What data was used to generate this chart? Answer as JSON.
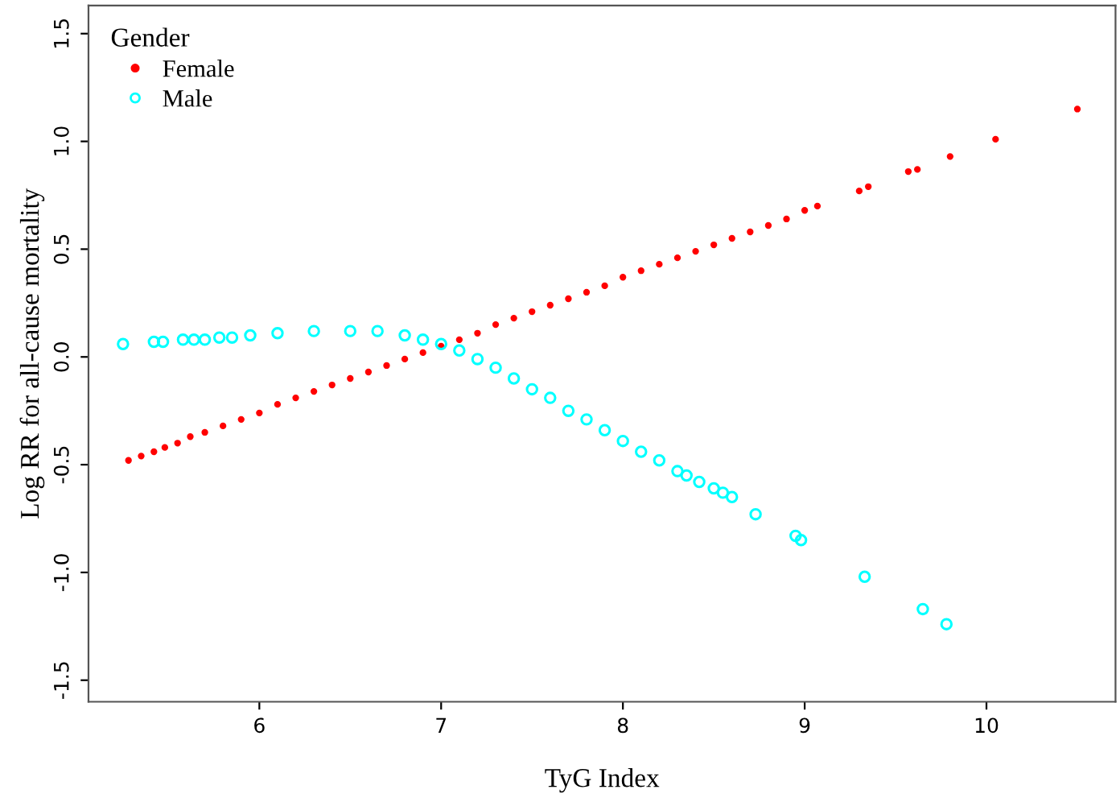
{
  "chart_data": {
    "type": "scatter",
    "xlabel": "TyG Index",
    "ylabel": "Log RR for all-cause mortality",
    "legend_title": "Gender",
    "xlim": [
      5.06,
      10.71
    ],
    "ylim": [
      -1.6,
      1.63
    ],
    "xticks": [
      6,
      7,
      8,
      9,
      10
    ],
    "yticks": [
      -1.5,
      {
        "value": -1,
        "label": "-1.0"
      },
      -0.5,
      {
        "value": 0,
        "label": "0.0"
      },
      0.5,
      {
        "value": 1,
        "label": "1.0"
      },
      1.5
    ],
    "grid": false,
    "legend": "top left",
    "marker": "circle",
    "series": [
      {
        "name": "Female",
        "color": "#ff0000",
        "x": [
          5.28,
          5.35,
          5.42,
          5.48,
          5.55,
          5.62,
          5.7,
          5.8,
          5.9,
          6.0,
          6.1,
          6.2,
          6.3,
          6.4,
          6.5,
          6.6,
          6.7,
          6.8,
          6.9,
          7.0,
          7.1,
          7.2,
          7.3,
          7.4,
          7.5,
          7.6,
          7.7,
          7.8,
          7.9,
          8.0,
          8.1,
          8.2,
          8.3,
          8.4,
          8.5,
          8.6,
          8.7,
          8.8,
          8.9,
          9.0,
          9.07,
          9.3,
          9.35,
          9.57,
          9.62,
          9.8,
          10.05,
          10.5
        ],
        "values": [
          -0.48,
          -0.46,
          -0.44,
          -0.42,
          -0.4,
          -0.37,
          -0.35,
          -0.32,
          -0.29,
          -0.26,
          -0.22,
          -0.19,
          -0.16,
          -0.13,
          -0.1,
          -0.07,
          -0.04,
          -0.01,
          0.02,
          0.05,
          0.08,
          0.11,
          0.15,
          0.18,
          0.21,
          0.24,
          0.27,
          0.3,
          0.33,
          0.37,
          0.4,
          0.43,
          0.46,
          0.49,
          0.52,
          0.55,
          0.58,
          0.61,
          0.64,
          0.68,
          0.7,
          0.77,
          0.79,
          0.86,
          0.87,
          0.93,
          1.01,
          1.15
        ]
      },
      {
        "name": "Male",
        "color": "#00ffff",
        "x": [
          5.25,
          5.42,
          5.47,
          5.58,
          5.64,
          5.7,
          5.78,
          5.85,
          5.95,
          6.1,
          6.3,
          6.5,
          6.65,
          6.8,
          6.9,
          7.0,
          7.1,
          7.2,
          7.3,
          7.4,
          7.5,
          7.6,
          7.7,
          7.8,
          7.9,
          8.0,
          8.1,
          8.2,
          8.3,
          8.35,
          8.42,
          8.5,
          8.55,
          8.6,
          8.73,
          8.95,
          8.98,
          9.33,
          9.65,
          9.78
        ],
        "values": [
          0.06,
          0.07,
          0.07,
          0.08,
          0.08,
          0.08,
          0.09,
          0.09,
          0.1,
          0.11,
          0.12,
          0.12,
          0.12,
          0.1,
          0.08,
          0.06,
          0.03,
          -0.01,
          -0.05,
          -0.1,
          -0.15,
          -0.19,
          -0.25,
          -0.29,
          -0.34,
          -0.39,
          -0.44,
          -0.48,
          -0.53,
          -0.55,
          -0.58,
          -0.61,
          -0.63,
          -0.65,
          -0.73,
          -0.83,
          -0.85,
          -1.02,
          -1.17,
          -1.24
        ]
      }
    ]
  }
}
